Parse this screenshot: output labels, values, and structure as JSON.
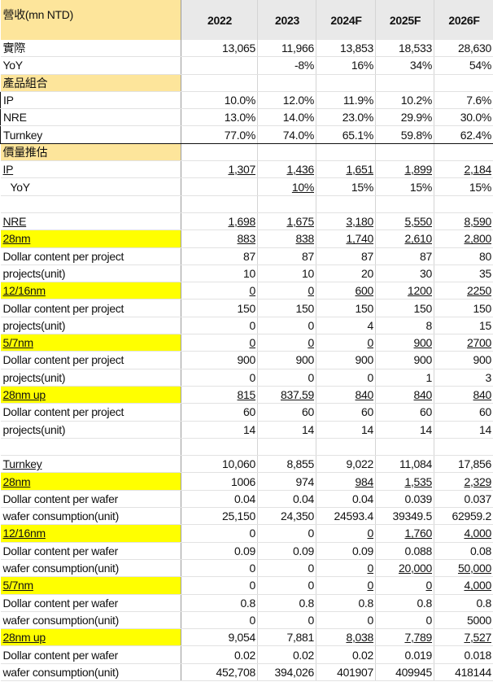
{
  "header": {
    "label": "營收(mn NTD)",
    "years": [
      "2022",
      "2023",
      "2024F",
      "2025F",
      "2026F"
    ]
  },
  "colors": {
    "highlight_yellow": "#ffff00",
    "header_tan": "#fde59b",
    "header_gray": "#e9e9e9"
  },
  "rows": [
    {
      "label": "實際",
      "values": [
        "13,065",
        "11,966",
        "13,853",
        "18,533",
        "28,630"
      ]
    },
    {
      "label": "YoY",
      "values": [
        "",
        "-8%",
        "16%",
        "34%",
        "54%"
      ]
    },
    {
      "label": "產品組合",
      "values": [
        "",
        "",
        "",
        "",
        ""
      ],
      "style": "tan"
    },
    {
      "label": "IP",
      "values": [
        "10.0%",
        "12.0%",
        "11.9%",
        "10.2%",
        "7.6%"
      ],
      "box": "top"
    },
    {
      "label": "NRE",
      "values": [
        "13.0%",
        "14.0%",
        "23.0%",
        "29.9%",
        "30.0%"
      ],
      "box": "mid"
    },
    {
      "label": "Turnkey",
      "values": [
        "77.0%",
        "74.0%",
        "65.1%",
        "59.8%",
        "62.4%"
      ],
      "box": "bottom"
    },
    {
      "label": "價量推估",
      "values": [
        "",
        "",
        "",
        "",
        ""
      ],
      "style": "tan"
    },
    {
      "label": "IP",
      "label_u": true,
      "values": [
        "1,307",
        "1,436",
        "1,651",
        "1,899",
        "2,184"
      ],
      "u": [
        true,
        true,
        true,
        true,
        true
      ]
    },
    {
      "label": "YoY",
      "indent": true,
      "values": [
        "",
        "10%",
        "15%",
        "15%",
        "15%"
      ],
      "u": [
        false,
        true,
        false,
        false,
        false
      ]
    },
    {
      "label": "",
      "values": [
        "",
        "",
        "",
        "",
        ""
      ]
    },
    {
      "label": "NRE",
      "label_u": true,
      "values": [
        "1,698",
        "1,675",
        "3,180",
        "5,550",
        "8,590"
      ],
      "u": [
        true,
        true,
        true,
        true,
        true
      ]
    },
    {
      "label": "28nm",
      "label_u": true,
      "style": "yellow",
      "values": [
        "883",
        "838",
        "1,740",
        "2,610",
        "2,800"
      ],
      "u": [
        true,
        true,
        true,
        true,
        true
      ]
    },
    {
      "label": "Dollar content per project",
      "values": [
        "87",
        "87",
        "87",
        "87",
        "80"
      ]
    },
    {
      "label": "projects(unit)",
      "values": [
        "10",
        "10",
        "20",
        "30",
        "35"
      ]
    },
    {
      "label": "12/16nm",
      "label_u": true,
      "style": "yellow",
      "values": [
        "0",
        "0",
        "600",
        "1200",
        "2250"
      ],
      "u": [
        true,
        true,
        true,
        true,
        true
      ]
    },
    {
      "label": "Dollar content per project",
      "values": [
        "150",
        "150",
        "150",
        "150",
        "150"
      ]
    },
    {
      "label": "projects(unit)",
      "values": [
        "0",
        "0",
        "4",
        "8",
        "15"
      ]
    },
    {
      "label": "5/7nm",
      "label_u": true,
      "style": "yellow",
      "values": [
        "0",
        "0",
        "0",
        "900",
        "2700"
      ],
      "u": [
        true,
        true,
        true,
        true,
        true
      ]
    },
    {
      "label": "Dollar content per project",
      "values": [
        "900",
        "900",
        "900",
        "900",
        "900"
      ]
    },
    {
      "label": "projects(unit)",
      "values": [
        "0",
        "0",
        "0",
        "1",
        "3"
      ]
    },
    {
      "label": "28nm up",
      "label_u": true,
      "style": "yellow",
      "values": [
        "815",
        "837.59",
        "840",
        "840",
        "840"
      ],
      "u": [
        true,
        true,
        true,
        true,
        true
      ]
    },
    {
      "label": "Dollar content per project",
      "values": [
        "60",
        "60",
        "60",
        "60",
        "60"
      ]
    },
    {
      "label": "projects(unit)",
      "values": [
        "14",
        "14",
        "14",
        "14",
        "14"
      ]
    },
    {
      "label": "",
      "values": [
        "",
        "",
        "",
        "",
        ""
      ]
    },
    {
      "label": "Turnkey",
      "label_u": true,
      "values": [
        "10,060",
        "8,855",
        "9,022",
        "11,084",
        "17,856"
      ]
    },
    {
      "label": "28nm",
      "label_u": true,
      "style": "yellow",
      "values": [
        "1006",
        "974",
        "984",
        "1,535",
        "2,329"
      ],
      "u": [
        false,
        false,
        true,
        true,
        true
      ]
    },
    {
      "label": "Dollar content per wafer",
      "values": [
        "0.04",
        "0.04",
        "0.04",
        "0.039",
        "0.037"
      ]
    },
    {
      "label": "wafer consumption(unit)",
      "values": [
        "25,150",
        "24,350",
        "24593.4",
        "39349.5",
        "62959.2"
      ]
    },
    {
      "label": "12/16nm",
      "label_u": true,
      "style": "yellow",
      "values": [
        "0",
        "0",
        "0",
        "1,760",
        "4,000"
      ],
      "u": [
        false,
        false,
        true,
        true,
        true
      ]
    },
    {
      "label": "Dollar content per wafer",
      "values": [
        "0.09",
        "0.09",
        "0.09",
        "0.088",
        "0.08"
      ]
    },
    {
      "label": "wafer consumption(unit)",
      "values": [
        "0",
        "0",
        "0",
        "20,000",
        "50,000"
      ],
      "u": [
        false,
        false,
        true,
        true,
        true
      ]
    },
    {
      "label": "5/7nm",
      "label_u": true,
      "style": "yellow",
      "values": [
        "0",
        "0",
        "0",
        "0",
        "4,000"
      ],
      "u": [
        false,
        false,
        true,
        true,
        true
      ]
    },
    {
      "label": "Dollar content per wafer",
      "values": [
        "0.8",
        "0.8",
        "0.8",
        "0.8",
        "0.8"
      ]
    },
    {
      "label": "wafer consumption(unit)",
      "values": [
        "0",
        "0",
        "0",
        "0",
        "5000"
      ]
    },
    {
      "label": "28nm up",
      "label_u": true,
      "style": "yellow",
      "values": [
        "9,054",
        "7,881",
        "8,038",
        "7,789",
        "7,527"
      ],
      "u": [
        false,
        false,
        true,
        true,
        true
      ]
    },
    {
      "label": "Dollar content per wafer",
      "values": [
        "0.02",
        "0.02",
        "0.02",
        "0.019",
        "0.018"
      ]
    },
    {
      "label": "wafer consumption(unit)",
      "values": [
        "452,708",
        "394,026",
        "401907",
        "409945",
        "418144"
      ]
    }
  ]
}
